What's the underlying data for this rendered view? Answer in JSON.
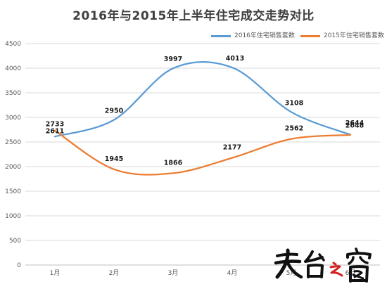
{
  "chart_data": {
    "type": "line",
    "title": "2016年与2015年上半年住宅成交走势对比",
    "xlabel": "",
    "ylabel": "",
    "categories": [
      "1月",
      "2月",
      "3月",
      "4月",
      "5月",
      "6月"
    ],
    "ylim": [
      0,
      4500
    ],
    "yticks": [
      0,
      500,
      1000,
      1500,
      2000,
      2500,
      3000,
      3500,
      4000,
      4500
    ],
    "grid": true,
    "legend_position": "top-right",
    "smooth": true,
    "series": [
      {
        "name": "2016年住宅销售套数",
        "color": "#5b9bd5",
        "values": [
          2611,
          2950,
          3997,
          4013,
          3108,
          2648
        ],
        "labels": [
          "2611",
          "2950",
          "3997",
          "4013",
          "3108",
          "2648"
        ]
      },
      {
        "name": "2015年住宅销售套数",
        "color": "#ed7d31",
        "values": [
          2733,
          1945,
          1866,
          2177,
          2562,
          2644
        ],
        "labels": [
          "2733",
          "1945",
          "1866",
          "2177",
          "2562",
          "2644"
        ]
      }
    ]
  },
  "colors": {
    "grid": "#d9d9d9",
    "axis": "#bfbfbf"
  },
  "watermark": {
    "icon": "tiantai-calligraphy-logo",
    "text": "天台之窗"
  }
}
